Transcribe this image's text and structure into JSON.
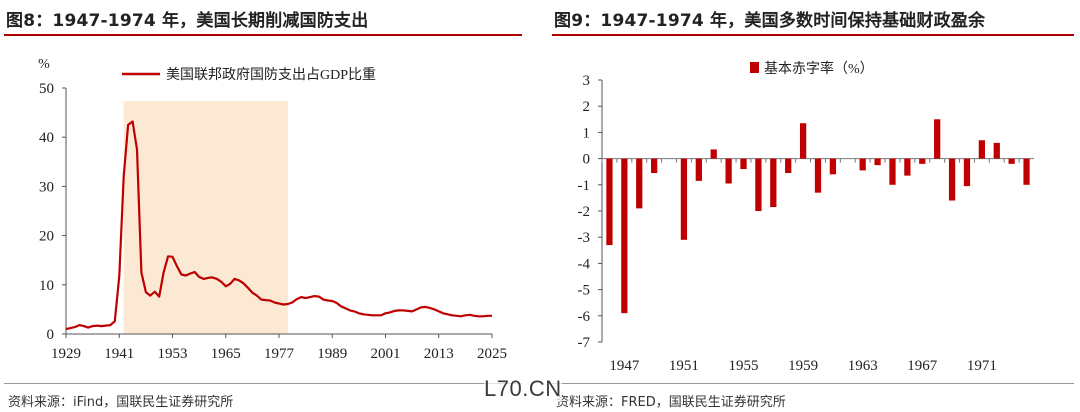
{
  "left": {
    "title": "图8：1947-1974 年，美国长期削减国防支出",
    "source": "资料来源：iFind，国联民生证券研究所"
  },
  "right": {
    "title": "图9：1947-1974 年，美国多数时间保持基础财政盈余",
    "source": "资料来源：FRED，国联民生证券研究所"
  },
  "watermark": "L70.CN",
  "colors": {
    "accent": "#c00000",
    "shade": "#fbe9d4",
    "title_rule": "#b30000"
  },
  "chart_data": [
    {
      "type": "line",
      "unit_label": "%",
      "legend_position": "top",
      "ylim": [
        0,
        50
      ],
      "yticks": [
        0,
        10,
        20,
        30,
        40,
        50
      ],
      "xlim": [
        1929,
        2025
      ],
      "xticks": [
        1929,
        1941,
        1953,
        1965,
        1977,
        1989,
        2001,
        2013,
        2025
      ],
      "shaded_span": [
        1942,
        1979
      ],
      "series": [
        {
          "name": "美国联邦政府国防支出占GDP比重",
          "x": [
            1929,
            1930,
            1931,
            1932,
            1933,
            1934,
            1935,
            1936,
            1937,
            1938,
            1939,
            1940,
            1941,
            1942,
            1943,
            1944,
            1945,
            1946,
            1947,
            1948,
            1949,
            1950,
            1951,
            1952,
            1953,
            1954,
            1955,
            1956,
            1957,
            1958,
            1959,
            1960,
            1961,
            1962,
            1963,
            1964,
            1965,
            1966,
            1967,
            1968,
            1969,
            1970,
            1971,
            1972,
            1973,
            1974,
            1975,
            1976,
            1977,
            1978,
            1979,
            1980,
            1981,
            1982,
            1983,
            1984,
            1985,
            1986,
            1987,
            1988,
            1989,
            1990,
            1991,
            1992,
            1993,
            1994,
            1995,
            1996,
            1997,
            1998,
            1999,
            2000,
            2001,
            2002,
            2003,
            2004,
            2005,
            2006,
            2007,
            2008,
            2009,
            2010,
            2011,
            2012,
            2013,
            2014,
            2015,
            2016,
            2017,
            2018,
            2019,
            2020,
            2021,
            2022,
            2023,
            2024,
            2025
          ],
          "y": [
            1.0,
            1.2,
            1.4,
            1.8,
            1.6,
            1.3,
            1.6,
            1.7,
            1.6,
            1.7,
            1.8,
            2.6,
            11.8,
            32.0,
            42.5,
            43.2,
            37.5,
            12.5,
            8.5,
            7.8,
            8.6,
            7.6,
            12.5,
            15.8,
            15.7,
            13.8,
            12.1,
            11.9,
            12.3,
            12.6,
            11.6,
            11.2,
            11.4,
            11.5,
            11.2,
            10.6,
            9.7,
            10.2,
            11.2,
            10.9,
            10.3,
            9.4,
            8.4,
            7.8,
            7.0,
            6.9,
            6.8,
            6.4,
            6.2,
            6.0,
            6.1,
            6.4,
            7.1,
            7.5,
            7.3,
            7.5,
            7.7,
            7.6,
            7.0,
            6.8,
            6.7,
            6.3,
            5.6,
            5.2,
            4.8,
            4.6,
            4.2,
            4.0,
            3.9,
            3.8,
            3.8,
            3.8,
            4.2,
            4.4,
            4.7,
            4.8,
            4.8,
            4.7,
            4.6,
            5.0,
            5.4,
            5.5,
            5.3,
            5.0,
            4.6,
            4.2,
            4.0,
            3.8,
            3.7,
            3.6,
            3.8,
            3.9,
            3.7,
            3.6,
            3.6,
            3.7,
            3.7
          ]
        }
      ]
    },
    {
      "type": "bar",
      "legend_position": "top",
      "ylim": [
        -7,
        3
      ],
      "yticks": [
        -7,
        -6,
        -5,
        -4,
        -3,
        -2,
        -1,
        0,
        1,
        2,
        3
      ],
      "xticks": [
        1947,
        1951,
        1955,
        1959,
        1963,
        1967,
        1971
      ],
      "series": [
        {
          "name": "基本赤字率（%）",
          "x": [
            1946,
            1947,
            1948,
            1949,
            1950,
            1951,
            1952,
            1953,
            1954,
            1955,
            1956,
            1957,
            1958,
            1959,
            1960,
            1961,
            1962,
            1963,
            1964,
            1965,
            1966,
            1967,
            1968,
            1969,
            1970,
            1971,
            1972,
            1973,
            1974
          ],
          "y": [
            -3.3,
            -5.9,
            -1.9,
            -0.55,
            0.0,
            -3.1,
            -0.85,
            0.35,
            -0.95,
            -0.4,
            -2.0,
            -1.85,
            -0.55,
            1.35,
            -1.3,
            -0.6,
            0.0,
            -0.45,
            -0.25,
            -1.0,
            -0.65,
            -0.2,
            1.5,
            -1.6,
            -1.05,
            0.7,
            0.6,
            -0.2,
            -1.0
          ]
        }
      ]
    }
  ]
}
